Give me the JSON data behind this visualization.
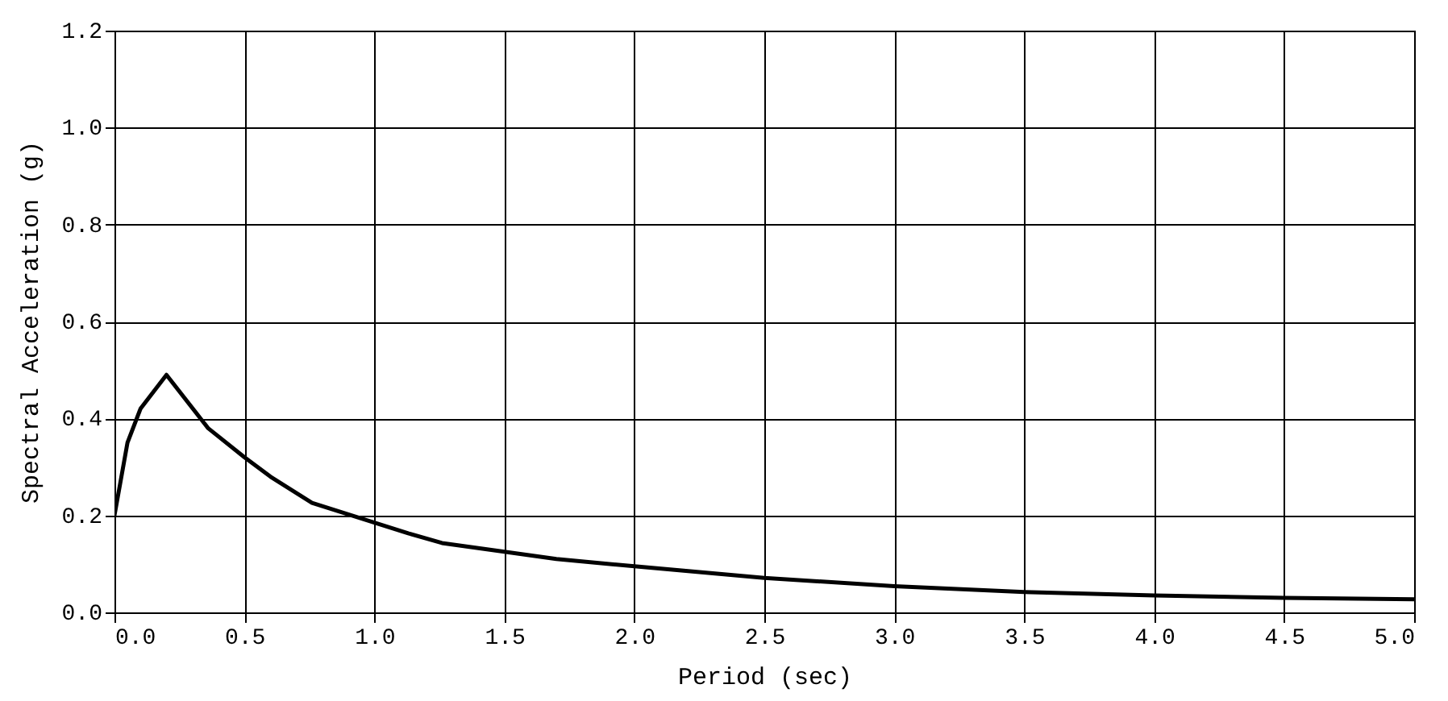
{
  "chart_data": {
    "type": "line",
    "xlabel": "Period (sec)",
    "ylabel": "Spectral Acceleration (g)",
    "series": [
      {
        "color": "#000000",
        "x": [
          0.0,
          0.05,
          0.1,
          0.2,
          0.36,
          0.5,
          0.6,
          0.76,
          1.0,
          1.13,
          1.26,
          1.5,
          1.7,
          2.0,
          2.5,
          3.0,
          3.5,
          4.0,
          4.5,
          5.0
        ],
        "values": [
          0.2,
          0.35,
          0.42,
          0.49,
          0.38,
          0.32,
          0.28,
          0.226,
          0.185,
          0.163,
          0.143,
          0.125,
          0.11,
          0.095,
          0.071,
          0.054,
          0.042,
          0.035,
          0.03,
          0.027
        ]
      }
    ],
    "xlim": [
      0,
      5
    ],
    "xticks": [
      {
        "value": 0,
        "label": "0.0"
      },
      0.5,
      {
        "value": 1,
        "label": "1.0"
      },
      1.5,
      {
        "value": 2,
        "label": "2.0"
      },
      2.5,
      {
        "value": 3,
        "label": "3.0"
      },
      3.5,
      {
        "value": 4,
        "label": "4.0"
      },
      4.5,
      {
        "value": 5,
        "label": "5.0"
      }
    ],
    "ylim": [
      0,
      1.2
    ],
    "yticks": [
      {
        "value": 0,
        "label": "0.0"
      },
      0.2,
      0.4,
      0.6,
      0.8,
      {
        "value": 1,
        "label": "1.0"
      },
      1.2
    ],
    "grid": true,
    "marker": "none",
    "line_style": "solid"
  }
}
